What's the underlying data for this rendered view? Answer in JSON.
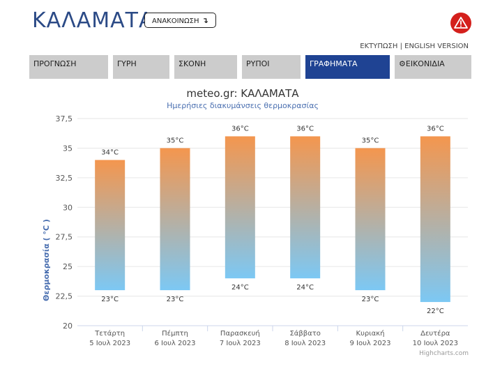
{
  "header": {
    "city": "ΚΑΛΑΜΑΤΑ",
    "announce_label": "ΑΝΑΚΟΙΝΩΣΗ",
    "announce_arrow": "↴",
    "print_label": "ΕΚΤΥΠΩΣΗ",
    "separator": " | ",
    "english_label": "ENGLISH VERSION"
  },
  "tabs": [
    {
      "label": "ΠΡΟΓΝΩΣΗ",
      "active": false
    },
    {
      "label": "ΓΥΡΗ",
      "active": false
    },
    {
      "label": "ΣΚΟΝΗ",
      "active": false
    },
    {
      "label": "ΡΥΠΟΙ",
      "active": false
    },
    {
      "label": "ΓΡΑΦΗΜΑΤΑ",
      "active": true
    },
    {
      "label": "ΕΙΚΟΝΙΔΙΑ",
      "active": false,
      "icon": "gear-icon"
    }
  ],
  "colors": {
    "title_blue": "#2b4a86",
    "active_tab": "#1f4393",
    "tab_gray": "#cccccc",
    "bar_top": "#f4964e",
    "bar_bottom": "#7cc8f4",
    "alert_red": "#d4201c"
  },
  "chart_data": {
    "type": "bar",
    "subtype": "columnrange",
    "title": "meteo.gr: ΚΑΛΑΜΑΤΑ",
    "subtitle": "Ημερήσιες διακυμάνσεις θερμοκρασίας",
    "ylabel": "Θερμοκρασία ( °C )",
    "xlabel": "",
    "ylim": [
      20,
      37.5
    ],
    "yticks": [
      "20",
      "22,5",
      "25",
      "27,5",
      "30",
      "32,5",
      "35",
      "37,5"
    ],
    "grid": true,
    "categories": [
      {
        "day": "Τετάρτη",
        "date": "5 Ιουλ 2023"
      },
      {
        "day": "Πέμπτη",
        "date": "6 Ιουλ 2023"
      },
      {
        "day": "Παρασκευή",
        "date": "7 Ιουλ 2023"
      },
      {
        "day": "Σάββατο",
        "date": "8 Ιουλ 2023"
      },
      {
        "day": "Κυριακή",
        "date": "9 Ιουλ 2023"
      },
      {
        "day": "Δευτέρα",
        "date": "10 Ιουλ 2023"
      }
    ],
    "low": [
      23,
      23,
      24,
      24,
      23,
      22
    ],
    "high": [
      34,
      35,
      36,
      36,
      35,
      36
    ],
    "low_labels": [
      "23°C",
      "23°C",
      "24°C",
      "24°C",
      "23°C",
      "22°C"
    ],
    "high_labels": [
      "34°C",
      "35°C",
      "36°C",
      "36°C",
      "35°C",
      "36°C"
    ],
    "credits": "Highcharts.com"
  }
}
